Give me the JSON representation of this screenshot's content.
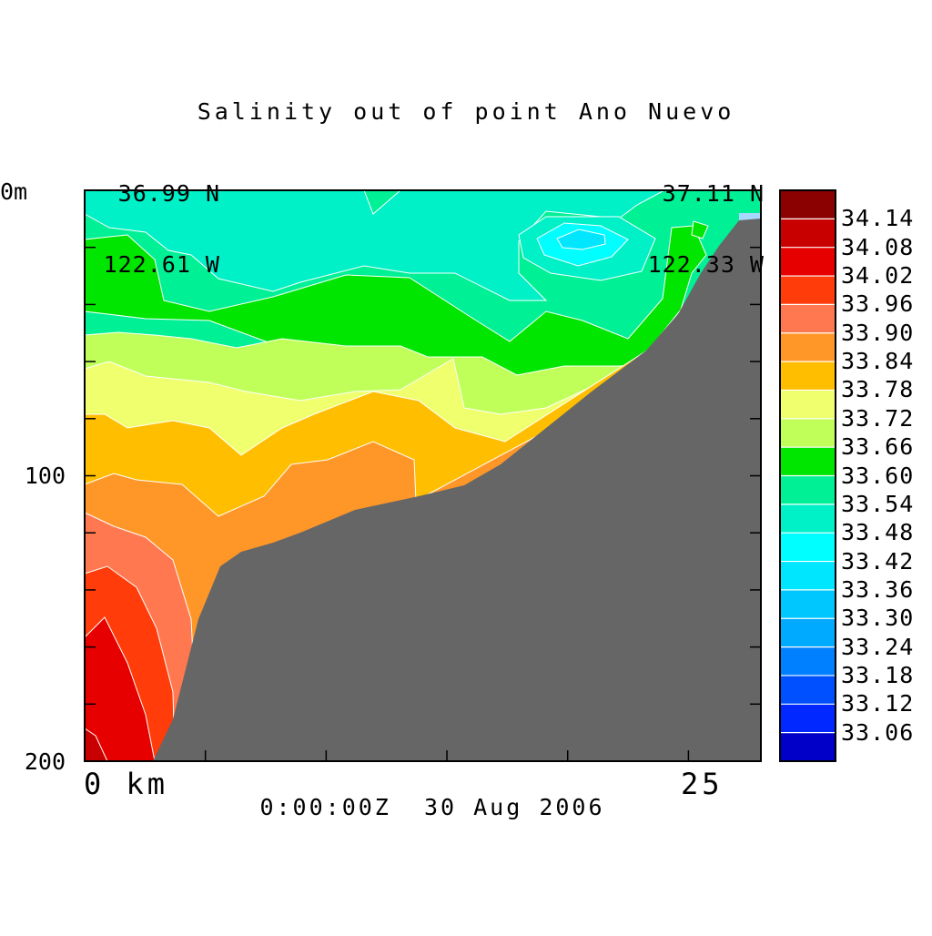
{
  "chart_data": {
    "type": "heatmap",
    "title": "Salinity out of point Ano Nuevo",
    "start_coord": {
      "lat": "36.99 N",
      "lon": "122.61 W"
    },
    "end_coord": {
      "lat": "37.11 N",
      "lon": "122.33 W"
    },
    "x_axis": {
      "range": [
        0,
        28
      ],
      "tick_labels": [
        "0 km",
        "25"
      ],
      "ticks": [
        0,
        5,
        10,
        15,
        20,
        25
      ]
    },
    "y_axis": {
      "range": [
        0,
        200
      ],
      "inverted": true,
      "tick_labels": [
        "0m",
        "100",
        "200"
      ],
      "ticks": [
        0,
        20,
        40,
        60,
        80,
        100,
        120,
        140,
        160,
        180,
        200
      ]
    },
    "time_label": "0:00:00Z  30 Aug 2006",
    "colorbar": {
      "levels": [
        "34.14",
        "34.08",
        "34.02",
        "33.96",
        "33.90",
        "33.84",
        "33.78",
        "33.72",
        "33.66",
        "33.60",
        "33.54",
        "33.48",
        "33.42",
        "33.36",
        "33.30",
        "33.24",
        "33.18",
        "33.12",
        "33.06"
      ],
      "colors": [
        "#8b0000",
        "#c80000",
        "#e60000",
        "#ff3c0a",
        "#ff7850",
        "#ff9628",
        "#ffbe00",
        "#f0ff6e",
        "#c0ff5a",
        "#00e600",
        "#00f096",
        "#00f0c8",
        "#00ffff",
        "#00e6ff",
        "#00c8ff",
        "#00aaff",
        "#0080ff",
        "#0050ff",
        "#0028ff",
        "#0000c8"
      ]
    },
    "colors": {
      "terrain": "#666666",
      "background": "#ffffff"
    }
  }
}
